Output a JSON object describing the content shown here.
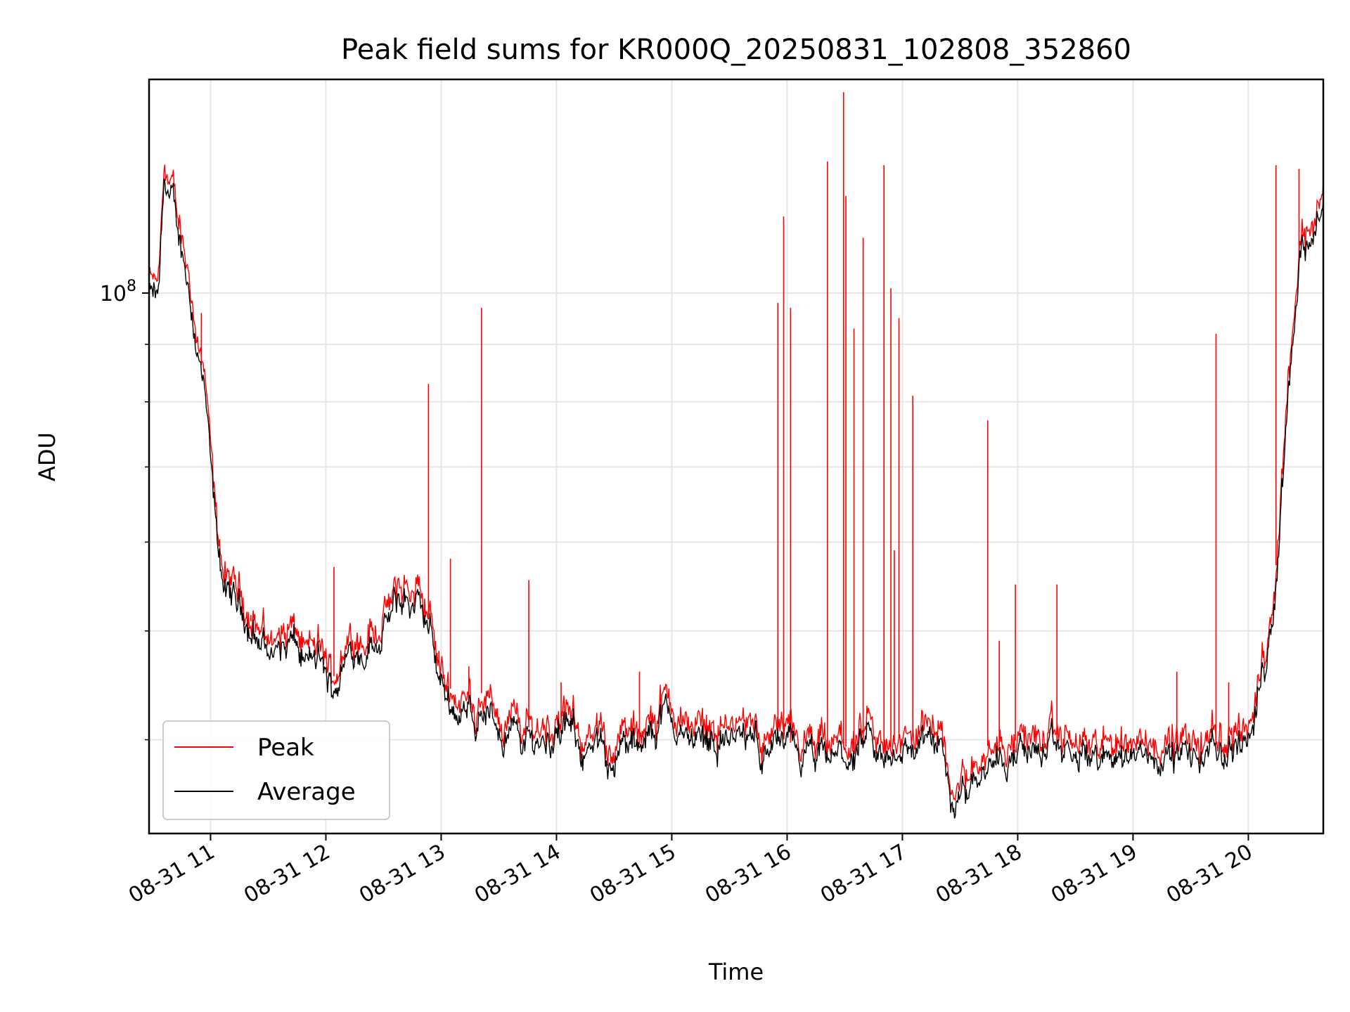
{
  "chart_data": {
    "type": "line",
    "title": "Peak field sums for KR000Q_20250831_102808_352860",
    "xlabel": "Time",
    "ylabel": "ADU",
    "yscale": "log",
    "x_unit": "hour of day 2025-08-31",
    "xlim": [
      "08-31 10:28",
      "08-31 20:39"
    ],
    "ylim": [
      33000000,
      155000000
    ],
    "y_ticks": [
      {
        "value": 100000000,
        "label": "10^8"
      }
    ],
    "x_ticks": [
      "08-31 11",
      "08-31 12",
      "08-31 13",
      "08-31 14",
      "08-31 15",
      "08-31 16",
      "08-31 17",
      "08-31 18",
      "08-31 19",
      "08-31 20"
    ],
    "grid": true,
    "legend_position": "lower-left",
    "colors": {
      "Peak": "#ff0000",
      "Average": "#000000"
    },
    "average_series": {
      "name": "Average",
      "x_hours": [
        10.47,
        10.55,
        10.6,
        10.62,
        10.7,
        10.8,
        10.95,
        11.05,
        11.15,
        11.3,
        11.4,
        11.55,
        11.7,
        11.8,
        11.95,
        12.05,
        12.2,
        12.4,
        12.55,
        12.65,
        12.75,
        12.9,
        13.0,
        13.1,
        13.2,
        13.3,
        13.35,
        13.45,
        13.6,
        13.8,
        14.0,
        14.2,
        14.3,
        14.5,
        14.6,
        14.75,
        14.9,
        15.0,
        15.1,
        15.3,
        15.5,
        15.7,
        15.9,
        16.1,
        16.3,
        16.5,
        16.7,
        16.85,
        17.0,
        17.2,
        17.35,
        17.45,
        17.55,
        17.7,
        17.9,
        18.2,
        18.5,
        18.8,
        19.1,
        19.4,
        19.6,
        19.8,
        19.97,
        20.05,
        20.15,
        20.25,
        20.35,
        20.45,
        20.55,
        20.63
      ],
      "values": [
        99000000,
        98000000,
        125000000,
        124000000,
        115000000,
        104000000,
        80000000,
        60000000,
        53000000,
        52000000,
        49000000,
        48000000,
        48500000,
        47000000,
        46500000,
        44000000,
        48000000,
        49000000,
        51000000,
        53000000,
        53000000,
        50000000,
        45000000,
        43000000,
        42000000,
        42000000,
        43000000,
        41500000,
        40500000,
        40000000,
        40500000,
        40000000,
        38500000,
        39000000,
        39500000,
        38500000,
        42500000,
        41500000,
        40000000,
        40500000,
        40000000,
        39500000,
        39500000,
        38500000,
        38000000,
        38500000,
        39000000,
        38000000,
        39500000,
        39500000,
        39000000,
        34500000,
        36500000,
        38500000,
        39000000,
        39000000,
        38500000,
        38500000,
        39000000,
        38500000,
        38500000,
        39000000,
        40000000,
        42000000,
        47000000,
        57000000,
        84000000,
        108000000,
        114000000,
        118000000
      ]
    },
    "peak_spikes": {
      "name": "Peak",
      "x_hours": [
        10.92,
        11.35,
        12.07,
        12.89,
        12.98,
        13.08,
        13.24,
        13.35,
        13.76,
        14.04,
        14.72,
        15.92,
        15.97,
        16.03,
        16.35,
        16.49,
        16.51,
        16.58,
        16.66,
        16.84,
        16.9,
        16.93,
        16.97,
        17.09,
        17.74,
        17.84,
        17.98,
        18.34,
        19.38,
        19.72,
        19.83,
        20.24,
        20.44
      ],
      "values": [
        96000000,
        51000000,
        57000000,
        83000000,
        48000000,
        58000000,
        46500000,
        97000000,
        55500000,
        45000000,
        46000000,
        98000000,
        117000000,
        97000000,
        131000000,
        151000000,
        122000000,
        93000000,
        112000000,
        130000000,
        101000000,
        59000000,
        95000000,
        81000000,
        77000000,
        49000000,
        55000000,
        55000000,
        46000000,
        92000000,
        45000000,
        130000000,
        129000000
      ]
    },
    "legend": [
      "Peak",
      "Average"
    ]
  }
}
